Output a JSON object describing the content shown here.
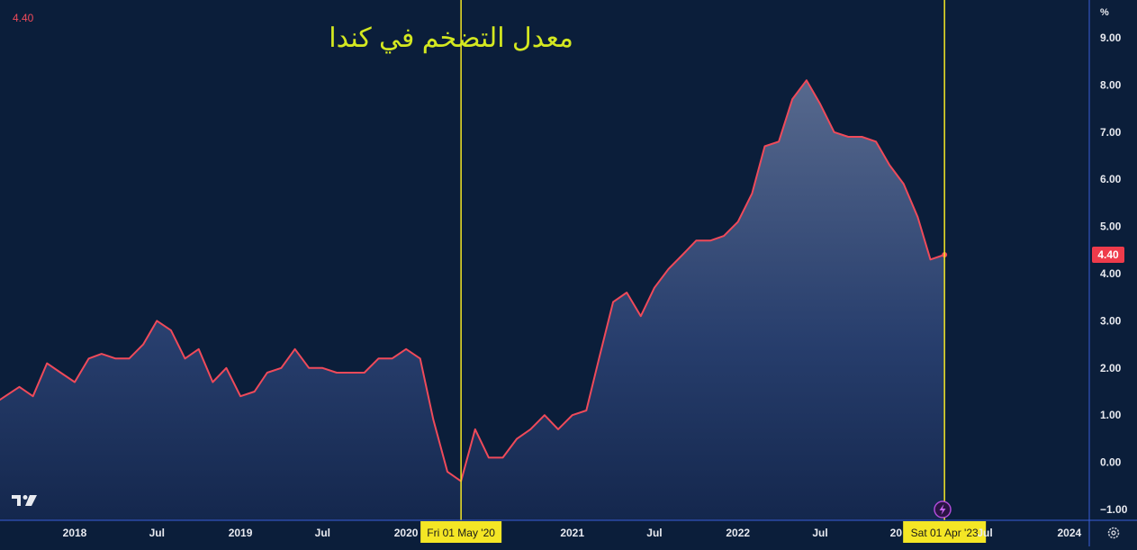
{
  "corner_value": "4.40",
  "unit_label": "%",
  "chart_data": {
    "type": "area",
    "title": "معدل التضخم في كندا",
    "xlabel": "",
    "ylabel": "",
    "y_ticks": [
      "9.00",
      "8.00",
      "7.00",
      "6.00",
      "5.00",
      "4.00",
      "3.00",
      "2.00",
      "1.00",
      "0.00",
      "−1.00"
    ],
    "x_ticks": [
      {
        "date": "2018-01-01",
        "label": "2018"
      },
      {
        "date": "2018-07-01",
        "label": "Jul"
      },
      {
        "date": "2019-01-01",
        "label": "2019"
      },
      {
        "date": "2019-07-01",
        "label": "Jul"
      },
      {
        "date": "2020-01-01",
        "label": "2020"
      },
      {
        "date": "2021-01-01",
        "label": "2021"
      },
      {
        "date": "2021-07-01",
        "label": "Jul"
      },
      {
        "date": "2022-01-01",
        "label": "2022"
      },
      {
        "date": "2022-07-01",
        "label": "Jul"
      },
      {
        "date": "2024-01-01",
        "label": "2024"
      }
    ],
    "hidden_tick_fragments": [
      {
        "date": "2023-01-01",
        "label": "20"
      },
      {
        "date": "2023-07-01",
        "label": "Jul"
      }
    ],
    "ylim": [
      -1.0,
      9.0
    ],
    "last_value_badge": "4.40",
    "markers": [
      {
        "date": "2020-05-01",
        "label": "Fri 01 May '20"
      },
      {
        "date": "2023-04-01",
        "label": "Sat 01 Apr '23"
      }
    ],
    "series": [
      {
        "x": [
          "2017-07-01",
          "2017-08-01",
          "2017-09-01",
          "2017-10-01",
          "2017-11-01",
          "2017-12-01",
          "2018-01-01",
          "2018-02-01",
          "2018-03-01",
          "2018-04-01",
          "2018-05-01",
          "2018-06-01",
          "2018-07-01",
          "2018-08-01",
          "2018-09-01",
          "2018-10-01",
          "2018-11-01",
          "2018-12-01",
          "2019-01-01",
          "2019-02-01",
          "2019-03-01",
          "2019-04-01",
          "2019-05-01",
          "2019-06-01",
          "2019-07-01",
          "2019-08-01",
          "2019-09-01",
          "2019-10-01",
          "2019-11-01",
          "2019-12-01",
          "2020-01-01",
          "2020-02-01",
          "2020-03-01",
          "2020-04-01",
          "2020-05-01",
          "2020-06-01",
          "2020-07-01",
          "2020-08-01",
          "2020-09-01",
          "2020-10-01",
          "2020-11-01",
          "2020-12-01",
          "2021-01-01",
          "2021-02-01",
          "2021-03-01",
          "2021-04-01",
          "2021-05-01",
          "2021-06-01",
          "2021-07-01",
          "2021-08-01",
          "2021-09-01",
          "2021-10-01",
          "2021-11-01",
          "2021-12-01",
          "2022-01-01",
          "2022-02-01",
          "2022-03-01",
          "2022-04-01",
          "2022-05-01",
          "2022-06-01",
          "2022-07-01",
          "2022-08-01",
          "2022-09-01",
          "2022-10-01",
          "2022-11-01",
          "2022-12-01",
          "2023-01-01",
          "2023-02-01",
          "2023-03-01",
          "2023-04-01"
        ],
        "values": [
          1.2,
          1.4,
          1.6,
          1.4,
          2.1,
          1.9,
          1.7,
          2.2,
          2.3,
          2.2,
          2.2,
          2.5,
          3.0,
          2.8,
          2.2,
          2.4,
          1.7,
          2.0,
          1.4,
          1.5,
          1.9,
          2.0,
          2.4,
          2.0,
          2.0,
          1.9,
          1.9,
          1.9,
          2.2,
          2.2,
          2.4,
          2.2,
          0.9,
          -0.2,
          -0.4,
          0.7,
          0.1,
          0.1,
          0.5,
          0.7,
          1.0,
          0.7,
          1.0,
          1.1,
          2.2,
          3.4,
          3.6,
          3.1,
          3.7,
          4.1,
          4.4,
          4.7,
          4.7,
          4.8,
          5.1,
          5.7,
          6.7,
          6.8,
          7.7,
          8.1,
          7.6,
          7.0,
          6.9,
          6.9,
          6.8,
          6.3,
          5.9,
          5.2,
          4.3,
          4.4
        ]
      }
    ],
    "colors": {
      "background": "#0b1e3a",
      "line": "#ef4a5a",
      "marker": "#f4e625",
      "title": "#d4e820",
      "badge": "#ef3b4b",
      "divider": "#3a5ed8"
    }
  },
  "logo": "TV"
}
